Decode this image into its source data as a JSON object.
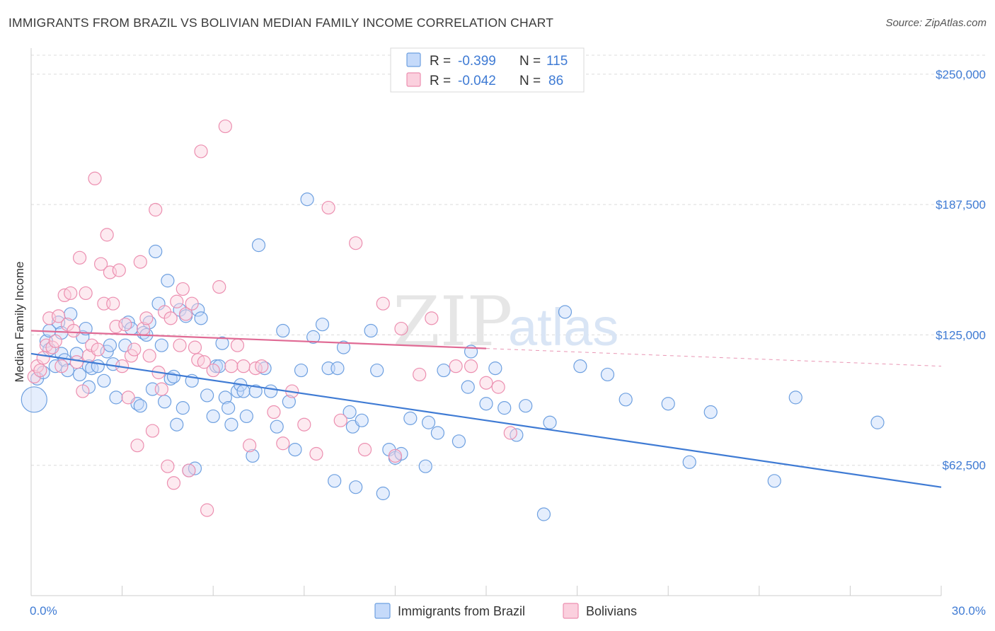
{
  "title": "IMMIGRANTS FROM BRAZIL VS BOLIVIAN MEDIAN FAMILY INCOME CORRELATION CHART",
  "source": "Source: ZipAtlas.com",
  "watermark": {
    "zip": "ZIP",
    "atlas": "atlas"
  },
  "legend": {
    "rows": [
      {
        "r_label": "R =",
        "r_value": "-0.399",
        "n_label": "N =",
        "n_value": "115",
        "color": "#6ea0e0",
        "fill": "#c5dafa"
      },
      {
        "r_label": "R =",
        "r_value": "-0.042",
        "n_label": "N =",
        "n_value": "86",
        "color": "#ec8fb0",
        "fill": "#fbd0de"
      }
    ]
  },
  "bottom_legend": [
    {
      "label": "Immigrants from Brazil",
      "color": "#6ea0e0",
      "fill": "#c5dafa"
    },
    {
      "label": "Bolivians",
      "color": "#ec8fb0",
      "fill": "#fbd0de"
    }
  ],
  "chart_data": {
    "type": "scatter",
    "title": "IMMIGRANTS FROM BRAZIL VS BOLIVIAN MEDIAN FAMILY INCOME CORRELATION CHART",
    "xlabel": "",
    "ylabel": "Median Family Income",
    "xlim": [
      0,
      30
    ],
    "ylim": [
      0,
      262500
    ],
    "x_tick_labels": [
      "0.0%",
      "30.0%"
    ],
    "y_ticks": [
      62500,
      125000,
      187500,
      250000
    ],
    "y_tick_labels": [
      "$62,500",
      "$125,000",
      "$187,500",
      "$250,000"
    ],
    "grid": true,
    "series": [
      {
        "name": "Immigrants from Brazil",
        "color": "#3f7bd4",
        "trend": {
          "x": [
            0,
            30
          ],
          "y": [
            116000,
            52000
          ],
          "dashed_from": null
        },
        "points": [
          [
            0.1,
            94000
          ],
          [
            0.2,
            104000
          ],
          [
            0.4,
            107000
          ],
          [
            0.5,
            122000
          ],
          [
            0.6,
            127000
          ],
          [
            0.6,
            118000
          ],
          [
            0.8,
            110000
          ],
          [
            0.9,
            131000
          ],
          [
            1.0,
            126000
          ],
          [
            1.0,
            116000
          ],
          [
            1.1,
            113000
          ],
          [
            1.2,
            108000
          ],
          [
            1.3,
            135000
          ],
          [
            1.5,
            116000
          ],
          [
            1.6,
            106000
          ],
          [
            1.7,
            124000
          ],
          [
            1.8,
            128000
          ],
          [
            1.9,
            110000
          ],
          [
            1.9,
            100000
          ],
          [
            2.0,
            109000
          ],
          [
            2.2,
            110000
          ],
          [
            2.4,
            103000
          ],
          [
            2.5,
            117000
          ],
          [
            2.6,
            120000
          ],
          [
            2.7,
            111000
          ],
          [
            2.8,
            95000
          ],
          [
            3.1,
            120000
          ],
          [
            3.2,
            131000
          ],
          [
            3.3,
            128000
          ],
          [
            3.5,
            92000
          ],
          [
            3.6,
            91000
          ],
          [
            3.7,
            126000
          ],
          [
            3.8,
            125000
          ],
          [
            3.9,
            131000
          ],
          [
            4.0,
            99000
          ],
          [
            4.1,
            165000
          ],
          [
            4.2,
            140000
          ],
          [
            4.3,
            120000
          ],
          [
            4.4,
            93000
          ],
          [
            4.5,
            151000
          ],
          [
            4.6,
            104000
          ],
          [
            4.7,
            105000
          ],
          [
            4.8,
            82000
          ],
          [
            4.9,
            137000
          ],
          [
            5.0,
            90000
          ],
          [
            5.1,
            134000
          ],
          [
            5.2,
            60000
          ],
          [
            5.3,
            103000
          ],
          [
            5.4,
            61000
          ],
          [
            5.5,
            137000
          ],
          [
            5.6,
            133000
          ],
          [
            5.8,
            96000
          ],
          [
            6.0,
            86000
          ],
          [
            6.1,
            110000
          ],
          [
            6.2,
            110000
          ],
          [
            6.3,
            121000
          ],
          [
            6.4,
            95000
          ],
          [
            6.5,
            90000
          ],
          [
            6.6,
            82000
          ],
          [
            6.8,
            98000
          ],
          [
            6.9,
            101000
          ],
          [
            7.0,
            98000
          ],
          [
            7.1,
            86000
          ],
          [
            7.3,
            67000
          ],
          [
            7.4,
            98000
          ],
          [
            7.5,
            168000
          ],
          [
            7.7,
            109000
          ],
          [
            7.9,
            98000
          ],
          [
            8.1,
            81000
          ],
          [
            8.3,
            127000
          ],
          [
            8.5,
            93000
          ],
          [
            8.7,
            70000
          ],
          [
            8.9,
            108000
          ],
          [
            9.1,
            190000
          ],
          [
            9.3,
            124000
          ],
          [
            9.6,
            130000
          ],
          [
            9.8,
            109000
          ],
          [
            10.0,
            55000
          ],
          [
            10.1,
            109000
          ],
          [
            10.3,
            119000
          ],
          [
            10.5,
            88000
          ],
          [
            10.6,
            81000
          ],
          [
            10.7,
            52000
          ],
          [
            10.9,
            84000
          ],
          [
            11.2,
            127000
          ],
          [
            11.4,
            108000
          ],
          [
            11.6,
            49000
          ],
          [
            11.8,
            70000
          ],
          [
            12.0,
            66000
          ],
          [
            12.2,
            68000
          ],
          [
            12.5,
            85000
          ],
          [
            13.0,
            62000
          ],
          [
            13.1,
            83000
          ],
          [
            13.4,
            78000
          ],
          [
            13.6,
            108000
          ],
          [
            14.1,
            74000
          ],
          [
            14.4,
            100000
          ],
          [
            14.5,
            117000
          ],
          [
            15.0,
            92000
          ],
          [
            15.3,
            109000
          ],
          [
            15.6,
            90000
          ],
          [
            16.0,
            77000
          ],
          [
            16.3,
            91000
          ],
          [
            16.9,
            39000
          ],
          [
            17.1,
            83000
          ],
          [
            17.6,
            136000
          ],
          [
            18.1,
            110000
          ],
          [
            19.0,
            106000
          ],
          [
            19.6,
            94000
          ],
          [
            21.0,
            92000
          ],
          [
            21.7,
            64000
          ],
          [
            22.4,
            88000
          ],
          [
            24.5,
            55000
          ],
          [
            25.2,
            95000
          ],
          [
            27.9,
            83000
          ]
        ]
      },
      {
        "name": "Bolivians",
        "color": "#e06a94",
        "trend": {
          "x": [
            0,
            30
          ],
          "y": [
            127000,
            110000
          ],
          "dashed_from": 15.0
        },
        "points": [
          [
            0.1,
            105000
          ],
          [
            0.2,
            110000
          ],
          [
            0.3,
            108000
          ],
          [
            0.4,
            114000
          ],
          [
            0.5,
            120000
          ],
          [
            0.6,
            133000
          ],
          [
            0.7,
            119000
          ],
          [
            0.8,
            122000
          ],
          [
            0.9,
            134000
          ],
          [
            1.0,
            110000
          ],
          [
            1.1,
            144000
          ],
          [
            1.2,
            130000
          ],
          [
            1.3,
            145000
          ],
          [
            1.4,
            127000
          ],
          [
            1.5,
            112000
          ],
          [
            1.6,
            162000
          ],
          [
            1.7,
            98000
          ],
          [
            1.8,
            145000
          ],
          [
            1.9,
            115000
          ],
          [
            2.0,
            120000
          ],
          [
            2.1,
            200000
          ],
          [
            2.2,
            118000
          ],
          [
            2.3,
            159000
          ],
          [
            2.4,
            140000
          ],
          [
            2.5,
            173000
          ],
          [
            2.6,
            155000
          ],
          [
            2.7,
            140000
          ],
          [
            2.8,
            129000
          ],
          [
            2.9,
            156000
          ],
          [
            3.0,
            110000
          ],
          [
            3.1,
            130000
          ],
          [
            3.2,
            95000
          ],
          [
            3.3,
            115000
          ],
          [
            3.4,
            118000
          ],
          [
            3.5,
            72000
          ],
          [
            3.6,
            160000
          ],
          [
            3.7,
            128000
          ],
          [
            3.8,
            133000
          ],
          [
            3.9,
            115000
          ],
          [
            4.0,
            79000
          ],
          [
            4.1,
            185000
          ],
          [
            4.2,
            107000
          ],
          [
            4.3,
            99000
          ],
          [
            4.4,
            136000
          ],
          [
            4.5,
            62000
          ],
          [
            4.6,
            133000
          ],
          [
            4.7,
            54000
          ],
          [
            4.8,
            141000
          ],
          [
            4.9,
            120000
          ],
          [
            5.0,
            147000
          ],
          [
            5.1,
            135000
          ],
          [
            5.2,
            60000
          ],
          [
            5.3,
            140000
          ],
          [
            5.4,
            119000
          ],
          [
            5.5,
            113000
          ],
          [
            5.6,
            213000
          ],
          [
            5.7,
            112000
          ],
          [
            5.8,
            41000
          ],
          [
            6.0,
            108000
          ],
          [
            6.2,
            148000
          ],
          [
            6.4,
            225000
          ],
          [
            6.6,
            110000
          ],
          [
            6.8,
            120000
          ],
          [
            7.0,
            110000
          ],
          [
            7.2,
            72000
          ],
          [
            7.4,
            109000
          ],
          [
            7.6,
            110000
          ],
          [
            8.0,
            88000
          ],
          [
            8.3,
            73000
          ],
          [
            8.6,
            98000
          ],
          [
            9.0,
            82000
          ],
          [
            9.4,
            68000
          ],
          [
            9.8,
            186000
          ],
          [
            10.2,
            84000
          ],
          [
            10.7,
            169000
          ],
          [
            11.0,
            70000
          ],
          [
            11.6,
            140000
          ],
          [
            12.2,
            128000
          ],
          [
            12.8,
            106000
          ],
          [
            13.2,
            133000
          ],
          [
            14.0,
            110000
          ],
          [
            14.5,
            110000
          ],
          [
            15.0,
            102000
          ],
          [
            15.4,
            100000
          ],
          [
            15.8,
            78000
          ],
          [
            12.0,
            67000
          ]
        ]
      }
    ]
  }
}
